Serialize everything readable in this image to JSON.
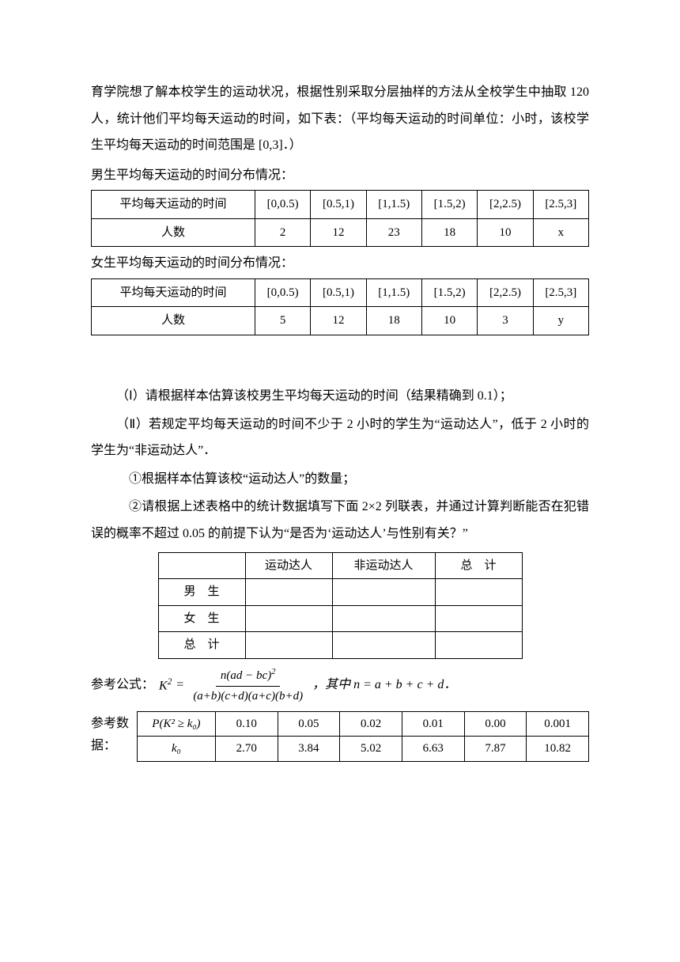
{
  "intro": {
    "p1": "育学院想了解本校学生的运动状况，根据性别采取分层抽样的方法从全校学生中抽取 120 人，统计他们平均每天运动的时间，如下表：（平均每天运动的时间单位：小时，该校学生平均每天运动的时间范围是 [0,3]．）",
    "male_heading": "男生平均每天运动的时间分布情况：",
    "female_heading": "女生平均每天运动的时间分布情况："
  },
  "time_table": {
    "row_label_time": "平均每天运动的时间",
    "row_label_count": "人数",
    "intervals": [
      "[0,0.5)",
      "[0.5,1)",
      "[1,1.5)",
      "[1.5,2)",
      "[2,2.5)",
      "[2.5,3]"
    ],
    "male_counts": [
      "2",
      "12",
      "23",
      "18",
      "10",
      "x"
    ],
    "female_counts": [
      "5",
      "12",
      "18",
      "10",
      "3",
      "y"
    ]
  },
  "questions": {
    "q1": "（Ⅰ）请根据样本估算该校男生平均每天运动的时间（结果精确到 0.1）；",
    "q2": "（Ⅱ）若规定平均每天运动的时间不少于 2 小时的学生为“运动达人”，低于 2 小时的学生为“非运动达人”．",
    "q2_1": "①根据样本估算该校“运动达人”的数量；",
    "q2_2": "②请根据上述表格中的统计数据填写下面 2×2 列联表，并通过计算判断能否在犯错误的概率不超过 0.05 的前提下认为“是否为‘运动达人’与性别有关？”"
  },
  "contingency": {
    "headers": [
      "",
      "运动达人",
      "非运动达人",
      "总　计"
    ],
    "rows": [
      "男　生",
      "女　生",
      "总　计"
    ]
  },
  "formula": {
    "prefix": "参考公式：",
    "k2": "K",
    "eq": " = ",
    "num": "n(ad − bc)",
    "den": "(a+b)(c+d)(a+c)(b+d)",
    "suffix": "，其中 n = a + b + c + d．"
  },
  "reference": {
    "label": "参考数据：",
    "header_p": "P(K² ≥ k₀)",
    "header_k": "k₀",
    "p_values": [
      "0.10",
      "0.05",
      "0.02",
      "0.01",
      "0.00",
      "0.001"
    ],
    "k_values": [
      "2.70",
      "3.84",
      "5.02",
      "6.63",
      "7.87",
      "10.82"
    ]
  },
  "style": {
    "font_size_body": 16,
    "font_size_table": 15,
    "text_color": "#000000",
    "background_color": "#ffffff",
    "border_color": "#000000",
    "line_height": 2.1
  }
}
